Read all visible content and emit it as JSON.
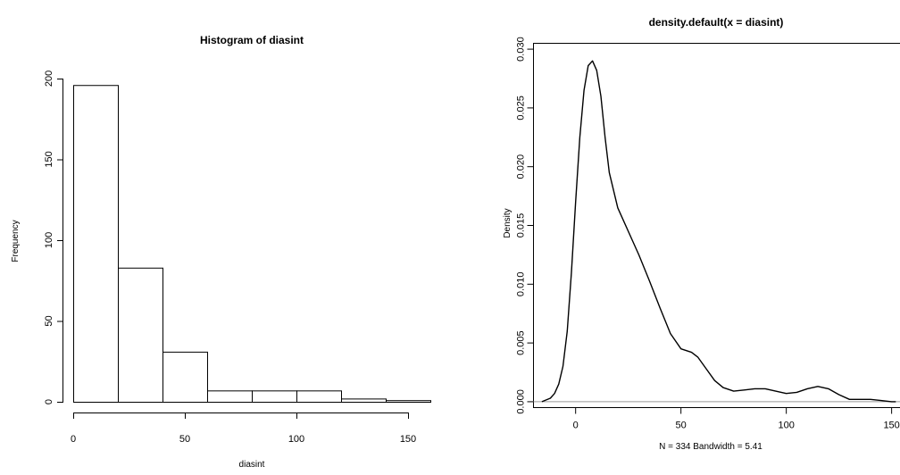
{
  "chart_data": [
    {
      "type": "bar",
      "title": "Histogram of diasint",
      "xlabel": "diasint",
      "ylabel": "Frequency",
      "bin_edges": [
        0,
        20,
        40,
        60,
        80,
        100,
        120,
        140,
        160
      ],
      "values": [
        196,
        83,
        31,
        7,
        7,
        7,
        2,
        1
      ],
      "xlim": [
        0,
        160
      ],
      "ylim": [
        0,
        200
      ],
      "x_ticks": [
        0,
        50,
        100,
        150
      ],
      "y_ticks": [
        0,
        50,
        100,
        150,
        200
      ]
    },
    {
      "type": "line",
      "title": "density.default(x = diasint)",
      "xlabel": "N = 334   Bandwidth = 5.41",
      "ylabel": "Density",
      "x": [
        -16,
        -12,
        -10,
        -8,
        -6,
        -4,
        -2,
        0,
        2,
        4,
        6,
        8,
        10,
        12,
        14,
        16,
        20,
        25,
        30,
        35,
        40,
        45,
        50,
        55,
        58,
        62,
        66,
        70,
        75,
        80,
        85,
        90,
        95,
        100,
        105,
        110,
        115,
        120,
        125,
        130,
        135,
        140,
        145,
        150,
        152
      ],
      "y": [
        0.0,
        0.0003,
        0.0007,
        0.0015,
        0.003,
        0.006,
        0.011,
        0.017,
        0.0225,
        0.0265,
        0.0286,
        0.029,
        0.0282,
        0.026,
        0.0225,
        0.0195,
        0.0165,
        0.0145,
        0.0125,
        0.0103,
        0.008,
        0.0058,
        0.0045,
        0.0042,
        0.0038,
        0.0028,
        0.0018,
        0.0012,
        0.0009,
        0.001,
        0.0011,
        0.0011,
        0.0009,
        0.0007,
        0.0008,
        0.0011,
        0.0013,
        0.0011,
        0.0006,
        0.0002,
        0.0002,
        0.0002,
        0.0001,
        0.0,
        0.0
      ],
      "x_ticks": [
        0,
        50,
        100,
        150
      ],
      "y_ticks": [
        "0.000",
        "0.005",
        "0.010",
        "0.015",
        "0.020",
        "0.025",
        "0.030"
      ],
      "xlim": [
        -20,
        158
      ],
      "ylim": [
        -0.0005,
        0.0305
      ],
      "box": true,
      "zero_line": true,
      "colors": {
        "line": "#000000",
        "zero_line": "#999999"
      }
    }
  ]
}
